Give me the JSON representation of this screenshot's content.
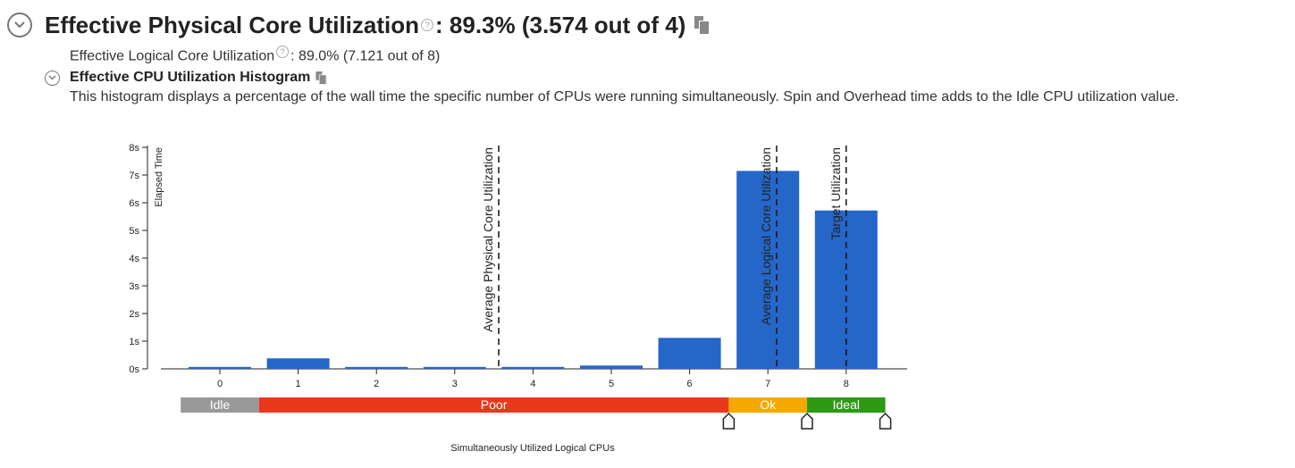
{
  "header": {
    "title": "Effective Physical Core Utilization",
    "value": ": 89.3% (3.574 out of 4)",
    "help_glyph": "?",
    "icons": [
      "collapse-chevron-icon",
      "help-icon",
      "copy-icon"
    ]
  },
  "logical": {
    "label": "Effective Logical Core Utilization",
    "value": ": 89.0% (7.121 out of 8)"
  },
  "histogram_section": {
    "title": "Effective CPU Utilization Histogram",
    "description": "This histogram displays a percentage of the wall time the specific number of CPUs were running simultaneously. Spin and Overhead time adds to the Idle CPU utilization value."
  },
  "colors": {
    "bar": "#2567c9",
    "idle": "#999999",
    "poor": "#e8391b",
    "ok": "#f5a900",
    "ideal": "#2c9a12"
  },
  "chart_data": {
    "type": "bar",
    "categories": [
      "0",
      "1",
      "2",
      "3",
      "4",
      "5",
      "6",
      "7",
      "8"
    ],
    "values": [
      0.07,
      0.38,
      0.07,
      0.07,
      0.07,
      0.12,
      1.12,
      7.15,
      5.72
    ],
    "ylabel": "Elapsed Time",
    "xlabel": "Simultaneously Utilized Logical CPUs",
    "yticks": [
      "0s",
      "1s",
      "2s",
      "3s",
      "4s",
      "5s",
      "6s",
      "7s",
      "8s"
    ],
    "ylim": [
      0,
      8
    ],
    "reference_lines": [
      {
        "label": "Average Physical Core Utilization",
        "x": 3.574
      },
      {
        "label": "Average Logical Core Utilization",
        "x": 7.121
      },
      {
        "label": "Target Utilization",
        "x": 8
      }
    ],
    "bands": [
      {
        "label": "Idle",
        "from": -0.5,
        "to": 0.5,
        "color": "#999999"
      },
      {
        "label": "Poor",
        "from": 0.5,
        "to": 6.5,
        "color": "#e8391b"
      },
      {
        "label": "Ok",
        "from": 6.5,
        "to": 7.5,
        "color": "#f5a900"
      },
      {
        "label": "Ideal",
        "from": 7.5,
        "to": 8.5,
        "color": "#2c9a12"
      }
    ],
    "band_markers": [
      6.5,
      7.5,
      8.5
    ]
  }
}
